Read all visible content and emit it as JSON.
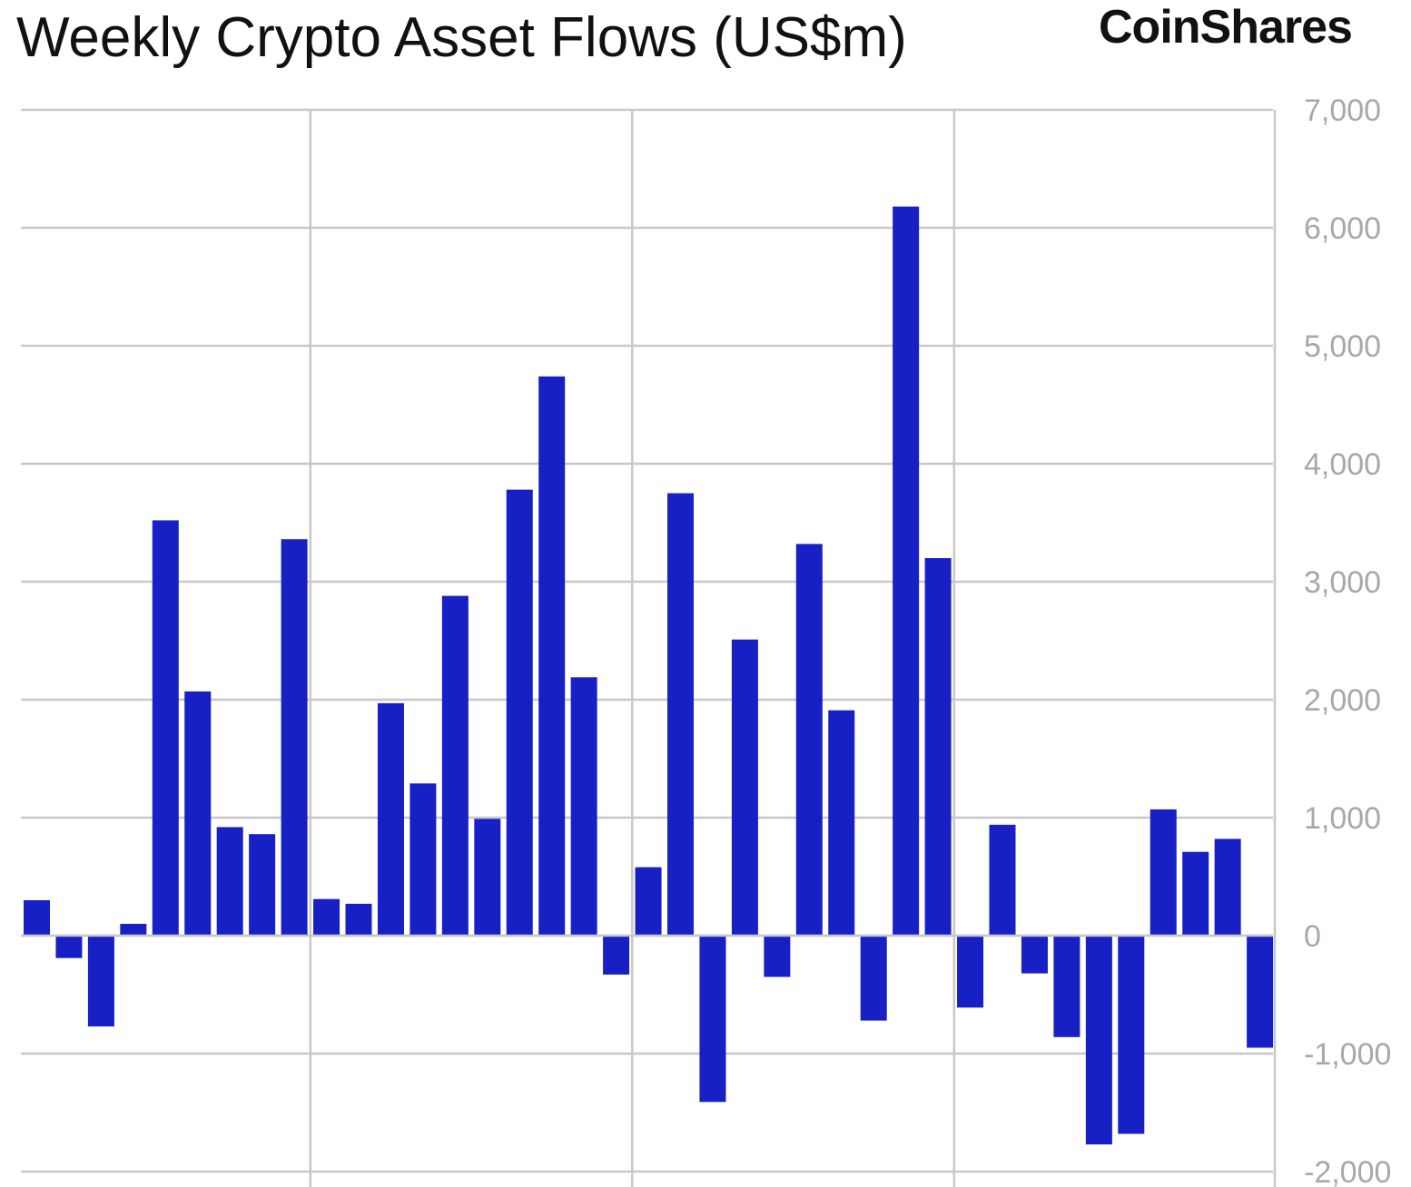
{
  "header": {
    "title": "Weekly Crypto Asset Flows (US$m)",
    "brand": "CoinShares"
  },
  "colors": {
    "bar": "#1620c4",
    "grid": "#c8c8c8",
    "tick_text": "#a8a8a8",
    "text": "#111111"
  },
  "chart_data": {
    "type": "bar",
    "title": "Weekly Crypto Asset Flows (US$m)",
    "xlabel": "",
    "ylabel": "",
    "ylim": [
      -2000,
      7000
    ],
    "y_axis_side": "right",
    "grid": true,
    "legend": "none",
    "yticks": [
      7000,
      6000,
      5000,
      4000,
      3000,
      2000,
      1000,
      0,
      -1000,
      -2000
    ],
    "ytick_labels": [
      "7,000",
      "6,000",
      "5,000",
      "4,000",
      "3,000",
      "2,000",
      "1,000",
      "0",
      "-1,000",
      "-2,000"
    ],
    "categories": [
      "",
      "",
      "",
      "",
      "",
      "",
      "",
      "",
      "",
      "",
      "",
      "",
      "",
      "",
      "",
      "",
      "",
      "",
      "",
      "",
      "",
      "",
      "",
      "",
      "",
      "",
      "",
      "",
      "",
      "",
      "",
      "",
      "",
      "",
      "",
      "",
      "",
      "",
      ""
    ],
    "values": [
      300,
      -190,
      -770,
      100,
      3520,
      2070,
      920,
      860,
      3360,
      310,
      270,
      1970,
      1290,
      2880,
      990,
      3780,
      4740,
      2190,
      -330,
      580,
      3750,
      -1410,
      2510,
      -350,
      3320,
      1910,
      -720,
      6180,
      3200,
      -610,
      940,
      -320,
      -860,
      -1770,
      -1680,
      1070,
      710,
      820,
      -950
    ],
    "vertical_gridlines_after_bar": [
      8,
      18,
      28
    ]
  }
}
